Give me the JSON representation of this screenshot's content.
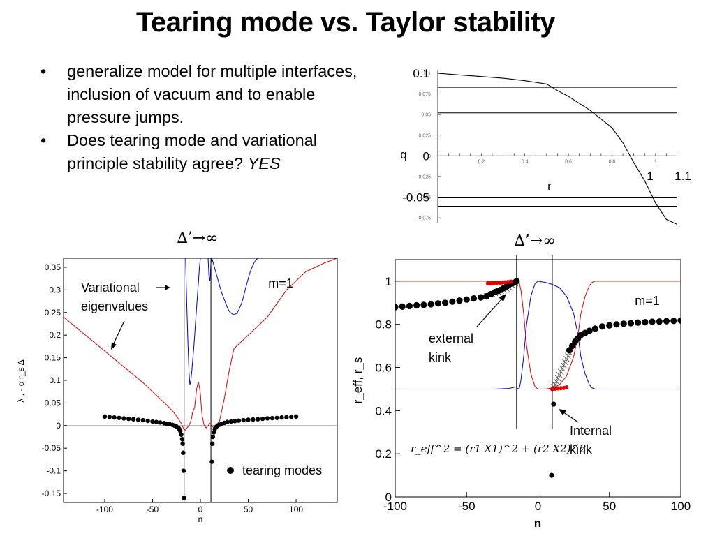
{
  "slide": {
    "title": "Tearing mode vs. Taylor stability",
    "bullets": [
      {
        "text": "generalize model for multiple interfaces, inclusion of vacuum and to enable pressure jumps.",
        "emphasis": ""
      },
      {
        "text": "Does tearing mode and variational principle stability agree? ",
        "emphasis": "YES"
      }
    ]
  },
  "chart_data": [
    {
      "type": "line",
      "xlabel": "r",
      "ylabel": "q",
      "xlim": [
        0,
        1.1
      ],
      "ylim": [
        -0.08,
        0.1
      ],
      "big_ytick_labels": [
        "0.1",
        "0",
        "-0.05"
      ],
      "big_xtick_labels": [
        "1",
        "1.1"
      ],
      "small_yticks": [
        "0.1",
        "0.075",
        "0.05",
        "0.025",
        "0",
        "-0.025",
        "-0.05",
        "-0.075"
      ],
      "small_xticks": [
        "0.2",
        "0.4",
        "0.6",
        "0.8",
        "1"
      ],
      "series": [
        {
          "x": [
            0,
            0.05,
            0.1,
            0.2,
            0.3,
            0.4,
            0.5,
            0.55,
            0.6,
            0.7,
            0.8,
            0.85,
            0.9,
            0.95,
            1.0,
            1.05,
            1.1
          ],
          "y": [
            0.1,
            0.099,
            0.098,
            0.096,
            0.094,
            0.091,
            0.087,
            0.079,
            0.072,
            0.055,
            0.034,
            0.016,
            -0.008,
            -0.03,
            -0.057,
            -0.077,
            -0.083
          ]
        }
      ],
      "hlines": [
        0.083,
        0.052,
        -0.05,
        -0.061
      ],
      "grid": false
    },
    {
      "type": "line",
      "header": "∆’→∞",
      "xlabel": "n",
      "ylabel": "λ , - α r_s ∆'",
      "xlim": [
        -143,
        143
      ],
      "ylim": [
        -0.17,
        0.37
      ],
      "xtick_labels": [
        "-100",
        "-50",
        "0",
        "50",
        "100"
      ],
      "ytick_labels": [
        "0.35",
        "0.3",
        "0.25",
        "0.2",
        "0.15",
        "0.1",
        "0.05",
        "0",
        "-0.05",
        "-0.1",
        "-0.15"
      ],
      "annotations": [
        "m=1",
        "Variational",
        "eigenvalues"
      ],
      "legend": "tearing modes",
      "vlines": [
        -17,
        11
      ],
      "series": [
        {
          "name": "",
          "color": "#0000cc",
          "x": [
            -15.5,
            -15,
            -14,
            -13,
            -12,
            -11,
            -10,
            -9,
            -8,
            -7,
            -6,
            -5,
            -4,
            -3,
            -2,
            -1,
            0,
            1,
            2,
            3,
            4,
            5,
            6,
            7,
            8,
            9,
            10,
            11,
            12,
            14,
            16,
            18,
            20,
            22,
            25,
            28,
            30,
            33,
            35,
            38,
            40,
            43,
            45,
            48,
            50,
            52,
            54,
            56,
            58,
            60
          ],
          "y": [
            0.37,
            0.33,
            0.25,
            0.18,
            0.12,
            0.09,
            0.1,
            0.12,
            0.145,
            0.17,
            0.2,
            0.23,
            0.26,
            0.29,
            0.32,
            0.35,
            0.37,
            null,
            null,
            null,
            null,
            null,
            null,
            null,
            0.37,
            0.33,
            0.32,
            0.36,
            0.37,
            0.355,
            0.34,
            0.325,
            0.31,
            0.295,
            0.278,
            0.262,
            0.253,
            0.247,
            0.245,
            0.248,
            0.255,
            0.27,
            0.285,
            0.31,
            0.325,
            0.34,
            0.35,
            0.36,
            0.366,
            0.37
          ]
        },
        {
          "name": "",
          "color": "#dd0000",
          "x": [
            -143,
            -120,
            -100,
            -80,
            -60,
            -45,
            -35,
            -28,
            -23,
            -20,
            -18,
            -16,
            -14,
            -12,
            -10,
            -9,
            -8,
            -7,
            -6,
            -5,
            -4,
            -3,
            -2,
            -1,
            0,
            1,
            2,
            4,
            6,
            8,
            10,
            12,
            14,
            16,
            18,
            20,
            25,
            30,
            35,
            40,
            45,
            50,
            60,
            70,
            80,
            90,
            100,
            110,
            120,
            130,
            143
          ],
          "y": [
            0.24,
            0.2,
            0.165,
            0.13,
            0.095,
            0.065,
            0.045,
            0.03,
            0.015,
            0.005,
            -0.005,
            -0.01,
            -0.005,
            0.0,
            0.01,
            0.02,
            0.03,
            0.035,
            0.04,
            0.06,
            0.08,
            0.09,
            0.095,
            0.085,
            0.07,
            0.04,
            0.02,
            0.0,
            -0.005,
            0.0,
            0.005,
            0.0,
            -0.005,
            0.0,
            0.005,
            0.01,
            0.06,
            0.12,
            0.17,
            0.18,
            0.19,
            0.2,
            0.22,
            0.24,
            0.27,
            0.3,
            0.32,
            0.34,
            0.35,
            0.36,
            0.37
          ]
        }
      ],
      "tearing_modes": {
        "x": [
          -100,
          -95,
          -90,
          -85,
          -80,
          -75,
          -70,
          -65,
          -60,
          -55,
          -50,
          -46,
          -42,
          -38,
          -35,
          -32,
          -29,
          -27,
          -25,
          -23,
          -22,
          -21,
          -20,
          -19,
          -18.5,
          -18,
          -17.5,
          -17.2,
          12,
          12.5,
          13,
          14,
          15,
          16,
          17,
          18,
          20,
          22,
          25,
          28,
          32,
          36,
          40,
          45,
          50,
          55,
          60,
          65,
          70,
          75,
          80,
          85,
          90,
          95,
          100
        ],
        "y": [
          0.02,
          0.019,
          0.018,
          0.017,
          0.016,
          0.015,
          0.014,
          0.013,
          0.012,
          0.0105,
          0.009,
          0.008,
          0.0068,
          0.0055,
          0.0042,
          0.003,
          0.0015,
          0.0,
          -0.002,
          -0.005,
          -0.008,
          -0.012,
          -0.02,
          -0.03,
          -0.04,
          -0.06,
          -0.1,
          -0.16,
          -0.08,
          -0.04,
          -0.025,
          -0.015,
          -0.008,
          -0.004,
          -0.002,
          0.0,
          0.002,
          0.004,
          0.006,
          0.008,
          0.009,
          0.01,
          0.011,
          0.012,
          0.013,
          0.0135,
          0.014,
          0.015,
          0.016,
          0.0165,
          0.017,
          0.018,
          0.0185,
          0.019,
          0.02
        ]
      },
      "grid": false
    },
    {
      "type": "line",
      "header": "∆’→∞",
      "xlabel": "n",
      "ylabel": "r_eff, r_s",
      "xlim": [
        -100,
        100
      ],
      "ylim": [
        0,
        1.1
      ],
      "xtick_labels": [
        "-100",
        "-50",
        "0",
        "50",
        "100"
      ],
      "ytick_labels": [
        "0",
        "0.2",
        "0.4",
        "0.6",
        "0.8",
        "1"
      ],
      "annotations": [
        "m=1",
        "external",
        "kink",
        "Internal",
        "kink"
      ],
      "formula": "r_eff^2 = (r1 X1)^2 + (r2 X2)^2",
      "vlines": [
        -15,
        10
      ],
      "series": [
        {
          "name": "",
          "color": "#0000cc",
          "x": [
            -100,
            -60,
            -30,
            -20,
            -17,
            -15,
            -14,
            -13,
            -12,
            -10,
            -8,
            -5,
            -2,
            0,
            5,
            10,
            15,
            20,
            25,
            28,
            30,
            33,
            36,
            38,
            40,
            45,
            50,
            70,
            100
          ],
          "y": [
            0.5,
            0.5,
            0.5,
            0.503,
            0.508,
            0.51,
            0.5,
            0.505,
            0.54,
            0.65,
            0.8,
            0.93,
            0.99,
            1.0,
            0.995,
            0.985,
            0.97,
            0.93,
            0.85,
            0.75,
            0.65,
            0.57,
            0.52,
            0.505,
            0.5,
            0.5,
            0.5,
            0.5,
            0.5
          ]
        },
        {
          "name": "",
          "color": "#dd0000",
          "x": [
            -100,
            -60,
            -30,
            -20,
            -17,
            -15,
            -14,
            -13,
            -12,
            -10,
            -8,
            -5,
            -2,
            0,
            5,
            10,
            15,
            20,
            25,
            28,
            30,
            33,
            36,
            38,
            40,
            45,
            50,
            70,
            100
          ],
          "y": [
            1.0,
            1.0,
            1.0,
            0.997,
            0.99,
            0.99,
            1.0,
            0.99,
            0.96,
            0.85,
            0.7,
            0.57,
            0.51,
            0.5,
            0.5,
            0.505,
            0.52,
            0.56,
            0.65,
            0.75,
            0.85,
            0.93,
            0.98,
            0.995,
            1.0,
            1.0,
            1.0,
            1.0,
            1.0
          ]
        }
      ],
      "eigenvalue_points": {
        "x": [
          -100,
          -95,
          -90,
          -85,
          -80,
          -75,
          -70,
          -65,
          -60,
          -55,
          -50,
          -45,
          -40,
          -36,
          -33,
          -30,
          -28,
          -26,
          -24,
          -22,
          -20,
          -18,
          -16,
          -15,
          22,
          24,
          26,
          28,
          30,
          33,
          36,
          40,
          45,
          50,
          55,
          60,
          65,
          70,
          75,
          80,
          85,
          90,
          95,
          100
        ],
        "y": [
          0.88,
          0.882,
          0.885,
          0.888,
          0.89,
          0.893,
          0.897,
          0.9,
          0.905,
          0.91,
          0.915,
          0.92,
          0.925,
          0.93,
          0.94,
          0.95,
          0.955,
          0.96,
          0.968,
          0.975,
          0.985,
          0.99,
          0.995,
          1.0,
          0.68,
          0.7,
          0.72,
          0.735,
          0.75,
          0.76,
          0.77,
          0.78,
          0.79,
          0.795,
          0.8,
          0.803,
          0.805,
          0.808,
          0.81,
          0.812,
          0.813,
          0.815,
          0.816,
          0.818
        ]
      },
      "red_points": {
        "x": [
          -35,
          -33,
          -31,
          -29,
          -27,
          -25,
          -23,
          -21,
          -19,
          10,
          12,
          14,
          16,
          18,
          20
        ],
        "y": [
          0.99,
          0.99,
          0.992,
          0.992,
          0.993,
          0.994,
          0.995,
          0.996,
          0.998,
          0.5,
          0.502,
          0.503,
          0.504,
          0.505,
          0.508
        ]
      },
      "hatch_points": {
        "x": [
          -36,
          -34,
          -32,
          -30,
          -28,
          -26,
          -24,
          -22,
          -20,
          -18,
          -16,
          11,
          12,
          13,
          14,
          15,
          16,
          17,
          18,
          19,
          20,
          21,
          22
        ],
        "y": [
          0.93,
          0.935,
          0.94,
          0.945,
          0.95,
          0.955,
          0.96,
          0.965,
          0.97,
          0.98,
          0.99,
          0.51,
          0.52,
          0.535,
          0.55,
          0.565,
          0.58,
          0.595,
          0.61,
          0.625,
          0.64,
          0.655,
          0.67
        ]
      },
      "single_points": {
        "x": [
          11,
          9.5
        ],
        "y": [
          0.43,
          0.1
        ]
      },
      "grid": false
    }
  ]
}
